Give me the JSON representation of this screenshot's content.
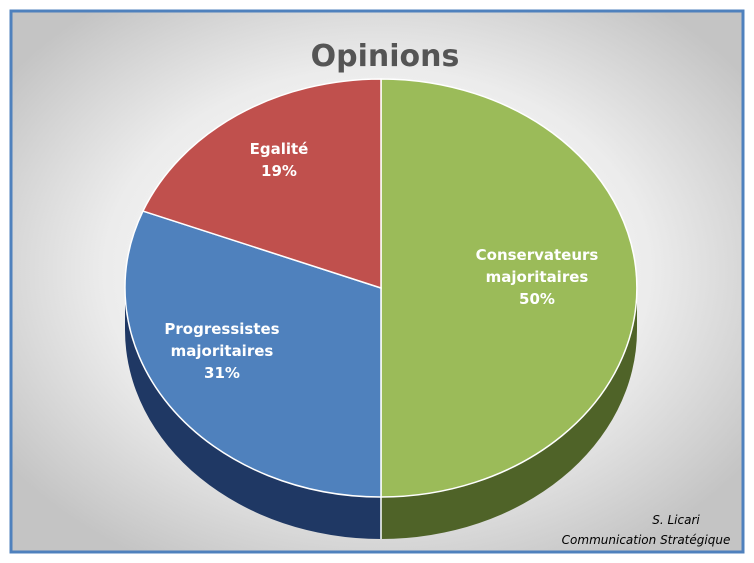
{
  "chart_data": {
    "type": "pie",
    "title": "Opinions",
    "slices": [
      {
        "label": [
          "Conservateurs",
          "majoritaires"
        ],
        "value": 50,
        "display": "50%",
        "color": "#9BBB59",
        "side_color": "#4F6328"
      },
      {
        "label": [
          "Progressistes",
          "majoritaires"
        ],
        "value": 31,
        "display": "31%",
        "color": "#4F81BD",
        "side_color": "#1F3864"
      },
      {
        "label": [
          "Egalité"
        ],
        "value": 19,
        "display": "19%",
        "color": "#C0504D",
        "side_color": "#7B2C2A"
      }
    ],
    "legend": "none",
    "three_d": true
  },
  "credit": {
    "author": "S. Licari",
    "organization": "Communication Stratégique"
  },
  "colors": {
    "frame_border": "#4F81BD",
    "background_center": "#FFFFFF",
    "background_edge": "#C9C9C9",
    "title": "#555555"
  }
}
